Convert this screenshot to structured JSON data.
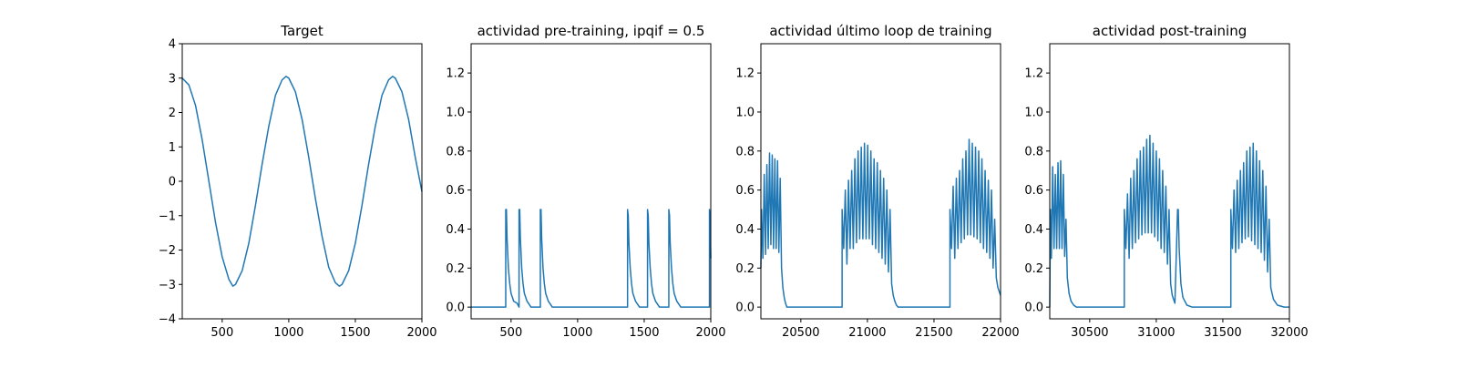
{
  "chart_data": [
    {
      "type": "line",
      "title": "Target",
      "xlabel": "",
      "ylabel": "",
      "xlim": [
        200,
        2000
      ],
      "ylim": [
        -4,
        4
      ],
      "xticks": [
        500,
        1000,
        1500,
        2000
      ],
      "yticks": [
        -4,
        -3,
        -2,
        -1,
        0,
        1,
        2,
        3,
        4
      ],
      "grid": false,
      "series": [
        {
          "x": [
            200,
            250,
            300,
            350,
            400,
            450,
            500,
            550,
            580,
            600,
            650,
            700,
            750,
            800,
            850,
            900,
            950,
            980,
            1000,
            1050,
            1100,
            1150,
            1200,
            1250,
            1300,
            1350,
            1380,
            1400,
            1450,
            1500,
            1550,
            1600,
            1650,
            1700,
            1750,
            1780,
            1800,
            1850,
            1900,
            1950,
            2000
          ],
          "y": [
            3.0,
            2.8,
            2.2,
            1.2,
            0.0,
            -1.2,
            -2.2,
            -2.85,
            -3.05,
            -3.0,
            -2.6,
            -1.8,
            -0.7,
            0.5,
            1.6,
            2.5,
            2.95,
            3.05,
            3.0,
            2.6,
            1.8,
            0.7,
            -0.5,
            -1.6,
            -2.5,
            -2.95,
            -3.05,
            -3.0,
            -2.6,
            -1.8,
            -0.7,
            0.5,
            1.6,
            2.5,
            2.95,
            3.05,
            3.0,
            2.6,
            1.8,
            0.7,
            -0.3
          ]
        }
      ]
    },
    {
      "type": "line",
      "title": "actividad pre-training, ipqif = 0.5",
      "xlabel": "",
      "ylabel": "",
      "xlim": [
        200,
        2000
      ],
      "ylim": [
        -0.06,
        1.35
      ],
      "xticks": [
        500,
        1000,
        1500,
        2000
      ],
      "yticks": [
        0.0,
        0.2,
        0.4,
        0.6,
        0.8,
        1.0,
        1.2
      ],
      "grid": false,
      "series": [
        {
          "x": [
            200,
            460,
            460,
            465,
            470,
            480,
            490,
            500,
            520,
            545,
            560,
            560,
            565,
            570,
            580,
            590,
            600,
            620,
            650,
            720,
            720,
            725,
            730,
            740,
            750,
            760,
            780,
            810,
            1375,
            1375,
            1380,
            1385,
            1395,
            1405,
            1415,
            1435,
            1465,
            1525,
            1525,
            1530,
            1535,
            1545,
            1555,
            1565,
            1585,
            1615,
            1685,
            1685,
            1690,
            1695,
            1705,
            1715,
            1725,
            1745,
            1775,
            1990,
            1990,
            1995,
            2000
          ],
          "y": [
            0.0,
            0.0,
            0.5,
            0.5,
            0.35,
            0.2,
            0.12,
            0.07,
            0.03,
            0.02,
            0.0,
            0.5,
            0.5,
            0.35,
            0.2,
            0.12,
            0.07,
            0.03,
            0.0,
            0.0,
            0.5,
            0.5,
            0.35,
            0.2,
            0.12,
            0.07,
            0.03,
            0.0,
            0.0,
            0.5,
            0.47,
            0.33,
            0.2,
            0.12,
            0.07,
            0.03,
            0.0,
            0.0,
            0.5,
            0.47,
            0.33,
            0.2,
            0.12,
            0.07,
            0.03,
            0.0,
            0.0,
            0.5,
            0.47,
            0.33,
            0.2,
            0.12,
            0.07,
            0.03,
            0.0,
            0.0,
            0.5,
            0.45,
            0.25
          ]
        }
      ]
    },
    {
      "type": "line",
      "title": "actividad último loop de training",
      "xlabel": "",
      "ylabel": "",
      "xlim": [
        20200,
        22000
      ],
      "ylim": [
        -0.06,
        1.35
      ],
      "xticks": [
        20500,
        21000,
        21500,
        22000
      ],
      "yticks": [
        0.0,
        0.2,
        0.4,
        0.6,
        0.8,
        1.0,
        1.2
      ],
      "grid": false,
      "series": [
        {
          "x": [
            20200,
            20205,
            20215,
            20225,
            20235,
            20245,
            20255,
            20265,
            20275,
            20285,
            20295,
            20305,
            20315,
            20325,
            20335,
            20345,
            20355,
            20365,
            20375,
            20385,
            20395,
            20410,
            20430,
            20460,
            20500,
            20810,
            20810,
            20822,
            20834,
            20846,
            20858,
            20870,
            20882,
            20894,
            20906,
            20918,
            20930,
            20942,
            20954,
            20966,
            20978,
            20990,
            21002,
            21014,
            21026,
            21038,
            21050,
            21062,
            21074,
            21086,
            21098,
            21110,
            21122,
            21134,
            21146,
            21158,
            21170,
            21182,
            21194,
            21206,
            21218,
            21230,
            21250,
            21280,
            21330,
            21620,
            21620,
            21632,
            21644,
            21656,
            21668,
            21680,
            21692,
            21704,
            21716,
            21728,
            21740,
            21752,
            21764,
            21776,
            21788,
            21800,
            21812,
            21824,
            21836,
            21848,
            21860,
            21872,
            21884,
            21896,
            21908,
            21920,
            21932,
            21944,
            21956,
            21968,
            21980,
            21990,
            22000
          ],
          "y": [
            0.2,
            0.5,
            0.25,
            0.68,
            0.27,
            0.73,
            0.3,
            0.79,
            0.32,
            0.78,
            0.3,
            0.76,
            0.3,
            0.75,
            0.28,
            0.66,
            0.2,
            0.1,
            0.05,
            0.02,
            0.0,
            0.0,
            0.0,
            0.0,
            0.0,
            0.0,
            0.5,
            0.3,
            0.6,
            0.22,
            0.65,
            0.3,
            0.7,
            0.3,
            0.76,
            0.33,
            0.8,
            0.35,
            0.82,
            0.35,
            0.84,
            0.35,
            0.83,
            0.35,
            0.8,
            0.32,
            0.76,
            0.3,
            0.74,
            0.28,
            0.7,
            0.25,
            0.66,
            0.22,
            0.6,
            0.18,
            0.5,
            0.12,
            0.06,
            0.03,
            0.01,
            0.0,
            0.0,
            0.0,
            0.0,
            0.0,
            0.5,
            0.3,
            0.62,
            0.25,
            0.66,
            0.3,
            0.7,
            0.33,
            0.76,
            0.35,
            0.8,
            0.37,
            0.86,
            0.37,
            0.84,
            0.36,
            0.82,
            0.35,
            0.8,
            0.33,
            0.76,
            0.3,
            0.7,
            0.28,
            0.65,
            0.25,
            0.6,
            0.2,
            0.45,
            0.15,
            0.1,
            0.08,
            0.06
          ]
        }
      ]
    },
    {
      "type": "line",
      "title": "actividad post-training",
      "xlabel": "",
      "ylabel": "",
      "xlim": [
        30200,
        32000
      ],
      "ylim": [
        -0.06,
        1.35
      ],
      "xticks": [
        30500,
        31000,
        31500,
        32000
      ],
      "yticks": [
        0.0,
        0.2,
        0.4,
        0.6,
        0.8,
        1.0,
        1.2
      ],
      "grid": false,
      "series": [
        {
          "x": [
            30200,
            30205,
            30212,
            30222,
            30232,
            30242,
            30252,
            30262,
            30272,
            30282,
            30292,
            30302,
            30312,
            30322,
            30332,
            30345,
            30360,
            30380,
            30400,
            30440,
            30760,
            30760,
            30772,
            30784,
            30796,
            30808,
            30820,
            30832,
            30844,
            30856,
            30868,
            30880,
            30892,
            30904,
            30916,
            30928,
            30940,
            30952,
            30964,
            30976,
            30988,
            31000,
            31012,
            31024,
            31036,
            31048,
            31060,
            31072,
            31084,
            31096,
            31108,
            31120,
            31140,
            31160,
            31165,
            31172,
            31185,
            31200,
            31230,
            31270,
            31560,
            31560,
            31572,
            31584,
            31596,
            31608,
            31620,
            31632,
            31644,
            31656,
            31668,
            31680,
            31692,
            31704,
            31716,
            31728,
            31740,
            31752,
            31764,
            31776,
            31788,
            31800,
            31812,
            31824,
            31836,
            31848,
            31860,
            31880,
            31910,
            31960,
            32000
          ],
          "y": [
            0.0,
            0.5,
            0.25,
            0.72,
            0.3,
            0.68,
            0.3,
            0.74,
            0.3,
            0.75,
            0.3,
            0.68,
            0.26,
            0.45,
            0.15,
            0.07,
            0.03,
            0.01,
            0.0,
            0.0,
            0.0,
            0.5,
            0.3,
            0.58,
            0.25,
            0.66,
            0.3,
            0.7,
            0.33,
            0.76,
            0.35,
            0.8,
            0.37,
            0.82,
            0.38,
            0.86,
            0.38,
            0.88,
            0.38,
            0.84,
            0.36,
            0.8,
            0.34,
            0.76,
            0.3,
            0.7,
            0.28,
            0.62,
            0.22,
            0.5,
            0.12,
            0.06,
            0.02,
            0.5,
            0.5,
            0.3,
            0.12,
            0.05,
            0.01,
            0.0,
            0.0,
            0.5,
            0.3,
            0.6,
            0.28,
            0.65,
            0.3,
            0.7,
            0.33,
            0.74,
            0.35,
            0.8,
            0.36,
            0.82,
            0.34,
            0.84,
            0.32,
            0.8,
            0.3,
            0.75,
            0.28,
            0.7,
            0.24,
            0.62,
            0.18,
            0.45,
            0.1,
            0.04,
            0.01,
            0.0,
            0.0
          ]
        }
      ]
    }
  ]
}
